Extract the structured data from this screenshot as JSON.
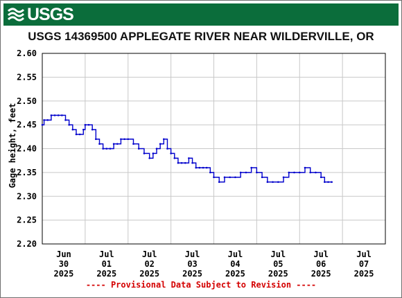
{
  "banner": {
    "logo_text": "USGS",
    "logo_icon": "usgs-wave-logo-icon",
    "color": "#0b6d3b"
  },
  "footer_note": "---- Provisional Data Subject to Revision ----",
  "colors": {
    "series": "#0000cc",
    "grid": "#c8c8c8",
    "note": "#d40000"
  },
  "chart_data": {
    "type": "line",
    "title": "USGS 14369500 APPLEGATE RIVER NEAR WILDERVILLE, OR",
    "xlabel": "",
    "ylabel": "Gage height, feet",
    "ylim": [
      2.2,
      2.6
    ],
    "xlim": [
      "2025-06-30 00:00",
      "2025-07-08 00:00"
    ],
    "grid": true,
    "yticks": [
      "2.20",
      "2.25",
      "2.30",
      "2.35",
      "2.40",
      "2.45",
      "2.50",
      "2.55",
      "2.60"
    ],
    "xticks": [
      {
        "at": "2025-06-30 00:00",
        "lines": [
          "Jun",
          "30",
          "2025"
        ]
      },
      {
        "at": "2025-07-01 00:00",
        "lines": [
          "Jul",
          "01",
          "2025"
        ]
      },
      {
        "at": "2025-07-02 00:00",
        "lines": [
          "Jul",
          "02",
          "2025"
        ]
      },
      {
        "at": "2025-07-03 00:00",
        "lines": [
          "Jul",
          "03",
          "2025"
        ]
      },
      {
        "at": "2025-07-04 00:00",
        "lines": [
          "Jul",
          "04",
          "2025"
        ]
      },
      {
        "at": "2025-07-05 00:00",
        "lines": [
          "Jul",
          "05",
          "2025"
        ]
      },
      {
        "at": "2025-07-06 00:00",
        "lines": [
          "Jul",
          "06",
          "2025"
        ]
      },
      {
        "at": "2025-07-07 00:00",
        "lines": [
          "Jul",
          "07",
          "2025"
        ]
      }
    ],
    "series": [
      {
        "x": [
          "2025-06-30 00:00",
          "2025-06-30 01:00",
          "2025-06-30 03:00",
          "2025-06-30 05:00",
          "2025-06-30 07:00",
          "2025-06-30 09:00",
          "2025-06-30 11:00",
          "2025-06-30 13:00",
          "2025-06-30 15:00",
          "2025-06-30 17:00",
          "2025-06-30 19:00",
          "2025-06-30 21:00",
          "2025-06-30 23:00",
          "2025-07-01 00:00",
          "2025-07-01 02:00",
          "2025-07-01 04:00",
          "2025-07-01 06:00",
          "2025-07-01 08:00",
          "2025-07-01 10:00",
          "2025-07-01 12:00",
          "2025-07-01 14:00",
          "2025-07-01 16:00",
          "2025-07-01 18:00",
          "2025-07-01 20:00",
          "2025-07-01 22:00",
          "2025-07-02 00:00",
          "2025-07-02 03:00",
          "2025-07-02 06:00",
          "2025-07-02 09:00",
          "2025-07-02 12:00",
          "2025-07-02 14:00",
          "2025-07-02 16:00",
          "2025-07-02 18:00",
          "2025-07-02 20:00",
          "2025-07-02 22:00",
          "2025-07-03 00:00",
          "2025-07-03 02:00",
          "2025-07-03 04:00",
          "2025-07-03 06:00",
          "2025-07-03 08:00",
          "2025-07-03 10:00",
          "2025-07-03 12:00",
          "2025-07-03 14:00",
          "2025-07-03 16:00",
          "2025-07-03 18:00",
          "2025-07-03 20:00",
          "2025-07-03 22:00",
          "2025-07-04 00:00",
          "2025-07-04 03:00",
          "2025-07-04 06:00",
          "2025-07-04 09:00",
          "2025-07-04 12:00",
          "2025-07-04 15:00",
          "2025-07-04 18:00",
          "2025-07-04 21:00",
          "2025-07-05 00:00",
          "2025-07-05 03:00",
          "2025-07-05 06:00",
          "2025-07-05 09:00",
          "2025-07-05 12:00",
          "2025-07-05 15:00",
          "2025-07-05 18:00",
          "2025-07-05 21:00",
          "2025-07-06 00:00",
          "2025-07-06 03:00",
          "2025-07-06 06:00",
          "2025-07-06 09:00",
          "2025-07-06 12:00",
          "2025-07-06 14:00",
          "2025-07-06 16:00",
          "2025-07-06 18:00"
        ],
        "y": [
          2.45,
          2.46,
          2.46,
          2.47,
          2.47,
          2.47,
          2.47,
          2.46,
          2.45,
          2.44,
          2.43,
          2.43,
          2.44,
          2.45,
          2.45,
          2.44,
          2.42,
          2.41,
          2.4,
          2.4,
          2.4,
          2.41,
          2.41,
          2.42,
          2.42,
          2.42,
          2.41,
          2.4,
          2.39,
          2.38,
          2.39,
          2.4,
          2.41,
          2.42,
          2.4,
          2.39,
          2.38,
          2.37,
          2.37,
          2.37,
          2.38,
          2.37,
          2.36,
          2.36,
          2.36,
          2.36,
          2.35,
          2.34,
          2.33,
          2.34,
          2.34,
          2.34,
          2.35,
          2.35,
          2.36,
          2.35,
          2.34,
          2.33,
          2.33,
          2.33,
          2.34,
          2.35,
          2.35,
          2.35,
          2.36,
          2.35,
          2.35,
          2.34,
          2.33,
          2.33,
          2.33
        ]
      }
    ]
  }
}
